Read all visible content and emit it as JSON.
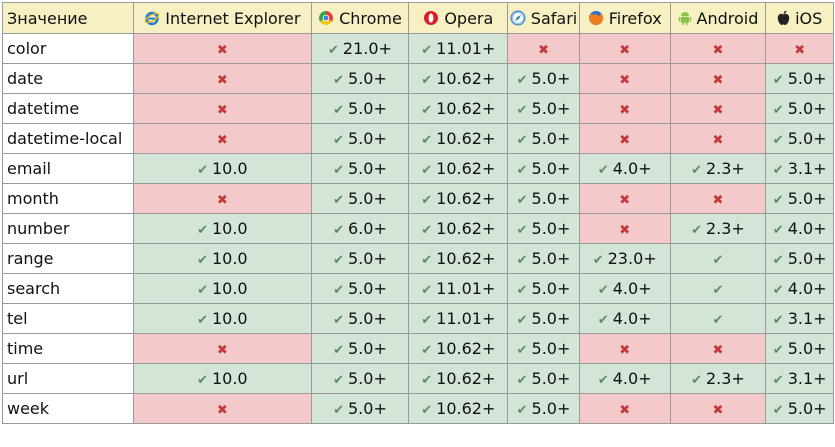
{
  "header": {
    "first": "Значение",
    "browsers": [
      {
        "name": "Internet Explorer",
        "icon": "internet-explorer-icon"
      },
      {
        "name": "Chrome",
        "icon": "chrome-icon"
      },
      {
        "name": "Opera",
        "icon": "opera-icon"
      },
      {
        "name": "Safari",
        "icon": "safari-icon"
      },
      {
        "name": "Firefox",
        "icon": "firefox-icon"
      },
      {
        "name": "Android",
        "icon": "android-icon"
      },
      {
        "name": "iOS",
        "icon": "apple-icon"
      }
    ]
  },
  "colors": {
    "header_bg": "#f6f0c2",
    "supported_bg": "#d2e5d6",
    "unsupported_bg": "#f4c9c9",
    "check": "#5f8a66",
    "cross": "#c23a3a"
  },
  "rows": [
    {
      "name": "color",
      "cells": [
        null,
        "21.0+",
        "11.01+",
        null,
        null,
        null,
        null
      ]
    },
    {
      "name": "date",
      "cells": [
        null,
        "5.0+",
        "10.62+",
        "5.0+",
        null,
        null,
        "5.0+"
      ]
    },
    {
      "name": "datetime",
      "cells": [
        null,
        "5.0+",
        "10.62+",
        "5.0+",
        null,
        null,
        "5.0+"
      ]
    },
    {
      "name": "datetime-local",
      "cells": [
        null,
        "5.0+",
        "10.62+",
        "5.0+",
        null,
        null,
        "5.0+"
      ]
    },
    {
      "name": "email",
      "cells": [
        "10.0",
        "5.0+",
        "10.62+",
        "5.0+",
        "4.0+",
        "2.3+",
        "3.1+"
      ]
    },
    {
      "name": "month",
      "cells": [
        null,
        "5.0+",
        "10.62+",
        "5.0+",
        null,
        null,
        "5.0+"
      ]
    },
    {
      "name": "number",
      "cells": [
        "10.0",
        "6.0+",
        "10.62+",
        "5.0+",
        null,
        "2.3+",
        "4.0+"
      ]
    },
    {
      "name": "range",
      "cells": [
        "10.0",
        "5.0+",
        "10.62+",
        "5.0+",
        "23.0+",
        "",
        "5.0+"
      ]
    },
    {
      "name": "search",
      "cells": [
        "10.0",
        "5.0+",
        "11.01+",
        "5.0+",
        "4.0+",
        "",
        "4.0+"
      ]
    },
    {
      "name": "tel",
      "cells": [
        "10.0",
        "5.0+",
        "11.01+",
        "5.0+",
        "4.0+",
        "",
        "3.1+"
      ]
    },
    {
      "name": "time",
      "cells": [
        null,
        "5.0+",
        "10.62+",
        "5.0+",
        null,
        null,
        "5.0+"
      ]
    },
    {
      "name": "url",
      "cells": [
        "10.0",
        "5.0+",
        "10.62+",
        "5.0+",
        "4.0+",
        "2.3+",
        "3.1+"
      ]
    },
    {
      "name": "week",
      "cells": [
        null,
        "5.0+",
        "10.62+",
        "5.0+",
        null,
        null,
        "5.0+"
      ]
    }
  ]
}
